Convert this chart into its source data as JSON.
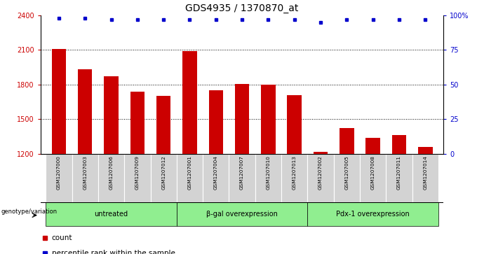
{
  "title": "GDS4935 / 1370870_at",
  "samples": [
    "GSM1207000",
    "GSM1207003",
    "GSM1207006",
    "GSM1207009",
    "GSM1207012",
    "GSM1207001",
    "GSM1207004",
    "GSM1207007",
    "GSM1207010",
    "GSM1207013",
    "GSM1207002",
    "GSM1207005",
    "GSM1207008",
    "GSM1207011",
    "GSM1207014"
  ],
  "counts": [
    2105,
    1930,
    1870,
    1740,
    1700,
    2090,
    1750,
    1805,
    1800,
    1710,
    1215,
    1420,
    1340,
    1360,
    1260
  ],
  "percentiles": [
    98,
    98,
    97,
    97,
    97,
    97,
    97,
    97,
    97,
    97,
    95,
    97,
    97,
    97,
    97
  ],
  "groups": [
    {
      "label": "untreated",
      "start": 0,
      "end": 5
    },
    {
      "label": "β-gal overexpression",
      "start": 5,
      "end": 10
    },
    {
      "label": "Pdx-1 overexpression",
      "start": 10,
      "end": 15
    }
  ],
  "bar_color": "#cc0000",
  "dot_color": "#0000cc",
  "group_bg_color": "#90ee90",
  "sample_bg_color": "#d3d3d3",
  "ylim_left": [
    1200,
    2400
  ],
  "ylim_right": [
    0,
    100
  ],
  "yticks_left": [
    1200,
    1500,
    1800,
    2100,
    2400
  ],
  "yticks_right": [
    0,
    25,
    50,
    75,
    100
  ],
  "gridlines": [
    1500,
    1800,
    2100
  ],
  "title_fontsize": 10,
  "tick_fontsize": 7,
  "label_fontsize": 6,
  "legend_count_label": "count",
  "legend_percentile_label": "percentile rank within the sample",
  "genotype_label": "genotype/variation"
}
